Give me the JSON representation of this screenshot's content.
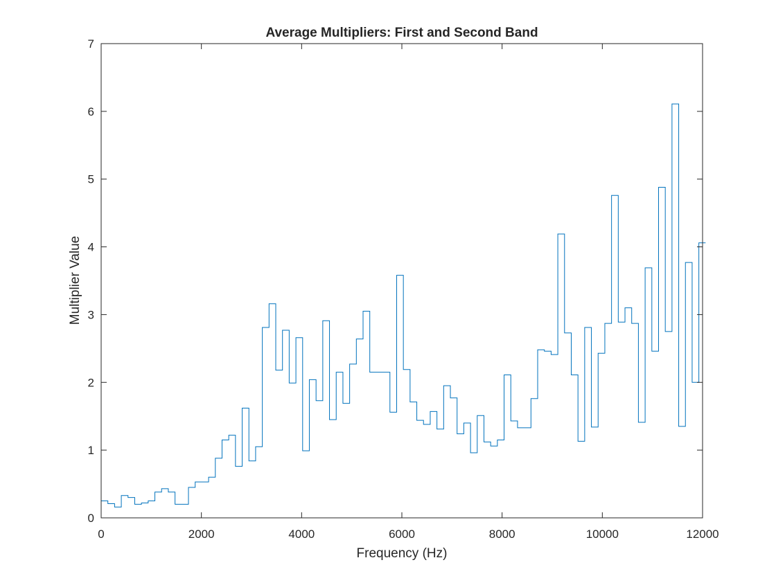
{
  "chart_data": {
    "type": "line",
    "style": "stairs",
    "title": "Average Multipliers: First and Second Band",
    "xlabel": "Frequency (Hz)",
    "ylabel": "Multiplier Value",
    "xlim": [
      0,
      12000
    ],
    "ylim": [
      0,
      7
    ],
    "xticks": [
      0,
      2000,
      4000,
      6000,
      8000,
      10000,
      12000
    ],
    "yticks": [
      0,
      1,
      2,
      3,
      4,
      5,
      6,
      7
    ],
    "grid": false,
    "line_color": "#0072BD",
    "bin_width": 134,
    "series": [
      {
        "values": [
          0.25,
          0.21,
          0.16,
          0.33,
          0.3,
          0.2,
          0.22,
          0.25,
          0.38,
          0.43,
          0.38,
          0.2,
          0.2,
          0.45,
          0.53,
          0.53,
          0.6,
          0.88,
          1.15,
          1.22,
          0.76,
          1.62,
          0.84,
          1.05,
          2.81,
          3.16,
          2.18,
          2.77,
          1.99,
          2.66,
          0.99,
          2.04,
          1.73,
          2.91,
          1.45,
          2.15,
          1.69,
          2.27,
          2.64,
          3.05,
          2.15,
          2.15,
          2.15,
          1.56,
          3.58,
          2.19,
          1.71,
          1.44,
          1.38,
          1.57,
          1.31,
          1.95,
          1.77,
          1.24,
          1.4,
          0.96,
          1.51,
          1.12,
          1.06,
          1.15,
          2.11,
          1.43,
          1.33,
          1.33,
          1.76,
          2.48,
          2.46,
          2.41,
          4.19,
          2.73,
          2.11,
          1.13,
          2.81,
          1.34,
          2.43,
          2.87,
          4.76,
          2.89,
          3.1,
          2.87,
          1.41,
          3.69,
          2.46,
          4.88,
          2.75,
          6.11,
          1.35,
          3.77,
          2.0,
          4.06
        ]
      }
    ]
  }
}
